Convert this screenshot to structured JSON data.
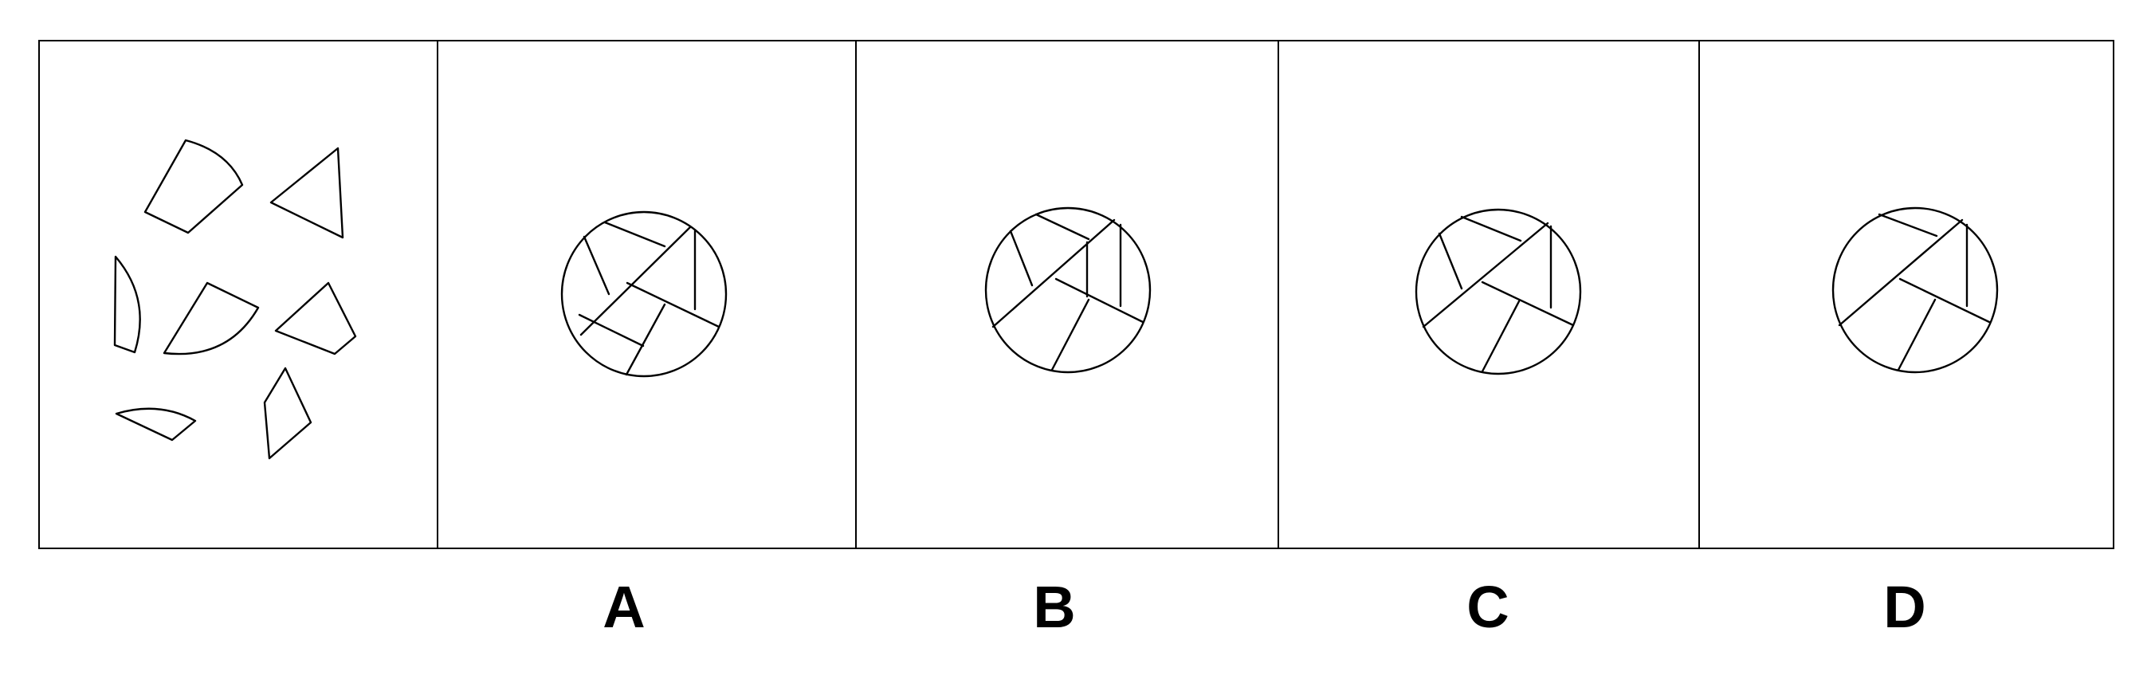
{
  "question": {
    "pieces_panel": {
      "piece_count": 7,
      "pieces": [
        "quadrilateral-with-arc",
        "triangle",
        "circular-segment",
        "quadrilateral-with-arc",
        "quadrilateral",
        "circular-segment",
        "quadrilateral-with-arc"
      ]
    },
    "options": [
      {
        "letter": "A"
      },
      {
        "letter": "B"
      },
      {
        "letter": "C"
      },
      {
        "letter": "D"
      }
    ]
  },
  "colors": {
    "background": "#ffffff",
    "stroke": "#000000"
  }
}
